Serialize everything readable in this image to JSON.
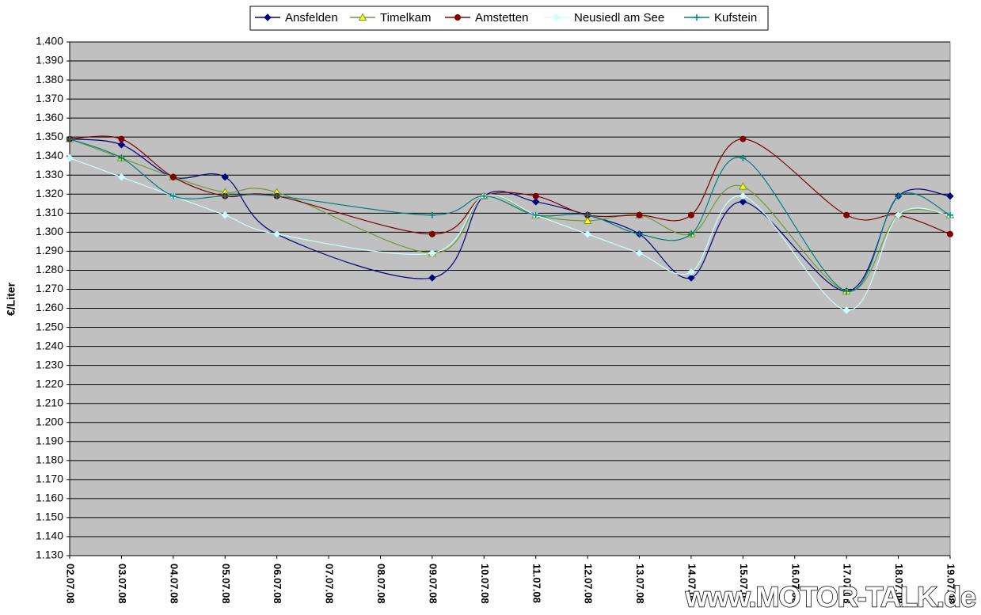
{
  "chart_data": {
    "type": "line",
    "y_label": "€/Liter",
    "watermark": "www.MOTOR-TALK.de",
    "categories": [
      "02.07.08",
      "03.07.08",
      "04.07.08",
      "05.07.08",
      "06.07.08",
      "07.07.08",
      "08.07.08",
      "09.07.08",
      "10.07.08",
      "11.07.08",
      "12.07.08",
      "13.07.08",
      "14.07.08",
      "15.07.08",
      "16.07.08",
      "17.07.08",
      "18.07.08",
      "19.07.08"
    ],
    "series": [
      {
        "name": "Ansfelden",
        "color": "#000080",
        "marker": "diamond",
        "marker_fill": "#000080",
        "values": [
          1.349,
          1.346,
          1.329,
          1.329,
          1.299,
          null,
          null,
          1.276,
          1.319,
          1.316,
          1.309,
          1.299,
          1.276,
          1.316,
          null,
          1.269,
          1.319,
          1.319
        ]
      },
      {
        "name": "Timelkam",
        "color": "#6f9a3a",
        "marker": "triangle",
        "marker_fill": "#ffff00",
        "values": [
          1.349,
          1.339,
          1.329,
          1.321,
          1.321,
          null,
          null,
          1.289,
          1.319,
          1.309,
          1.306,
          1.309,
          1.299,
          1.324,
          null,
          1.269,
          1.309,
          1.309
        ]
      },
      {
        "name": "Amstetten",
        "color": "#800000",
        "marker": "circle",
        "marker_fill": "#800000",
        "values": [
          1.349,
          1.349,
          1.329,
          1.319,
          1.319,
          null,
          null,
          1.299,
          1.319,
          1.319,
          1.309,
          1.309,
          1.309,
          1.349,
          null,
          1.309,
          1.309,
          1.299
        ]
      },
      {
        "name": "Neusiedl am See",
        "color": "#ccffff",
        "marker": "diamond",
        "marker_fill": "#ccffff",
        "values": [
          1.339,
          1.329,
          1.319,
          1.309,
          1.299,
          null,
          null,
          1.289,
          1.319,
          1.309,
          1.299,
          1.289,
          1.279,
          1.319,
          null,
          1.259,
          1.309,
          1.309
        ]
      },
      {
        "name": "Kufstein",
        "color": "#008080",
        "marker": "plus",
        "marker_fill": "#008080",
        "values": [
          1.349,
          1.339,
          1.319,
          1.319,
          1.319,
          null,
          null,
          1.309,
          1.319,
          1.309,
          1.309,
          1.299,
          1.299,
          1.339,
          null,
          1.269,
          1.319,
          1.309
        ]
      }
    ],
    "ylim": [
      1.13,
      1.4
    ],
    "yticks": [
      {
        "value": 1.13,
        "label": "1.130"
      },
      {
        "value": 1.14,
        "label": "1.140"
      },
      {
        "value": 1.15,
        "label": "1.150"
      },
      {
        "value": 1.16,
        "label": "1.160"
      },
      {
        "value": 1.17,
        "label": "1.170"
      },
      {
        "value": 1.18,
        "label": "1.180"
      },
      {
        "value": 1.19,
        "label": "1.190"
      },
      {
        "value": 1.2,
        "label": "1.200"
      },
      {
        "value": 1.21,
        "label": "1.210"
      },
      {
        "value": 1.22,
        "label": "1.220"
      },
      {
        "value": 1.23,
        "label": "1.230"
      },
      {
        "value": 1.24,
        "label": "1.240"
      },
      {
        "value": 1.25,
        "label": "1.250"
      },
      {
        "value": 1.26,
        "label": "1.260"
      },
      {
        "value": 1.27,
        "label": "1.270"
      },
      {
        "value": 1.28,
        "label": "1.280"
      },
      {
        "value": 1.29,
        "label": "1.290"
      },
      {
        "value": 1.3,
        "label": "1.300"
      },
      {
        "value": 1.31,
        "label": "1.310"
      },
      {
        "value": 1.32,
        "label": "1.320"
      },
      {
        "value": 1.33,
        "label": "1.330"
      },
      {
        "value": 1.34,
        "label": "1.340"
      },
      {
        "value": 1.35,
        "label": "1.350"
      },
      {
        "value": 1.36,
        "label": "1.360"
      },
      {
        "value": 1.37,
        "label": "1.370"
      },
      {
        "value": 1.38,
        "label": "1.380"
      },
      {
        "value": 1.39,
        "label": "1.390"
      },
      {
        "value": 1.4,
        "label": "1.400"
      }
    ],
    "grid": true,
    "legend": "top",
    "plot_background": "#c0c0c0"
  }
}
